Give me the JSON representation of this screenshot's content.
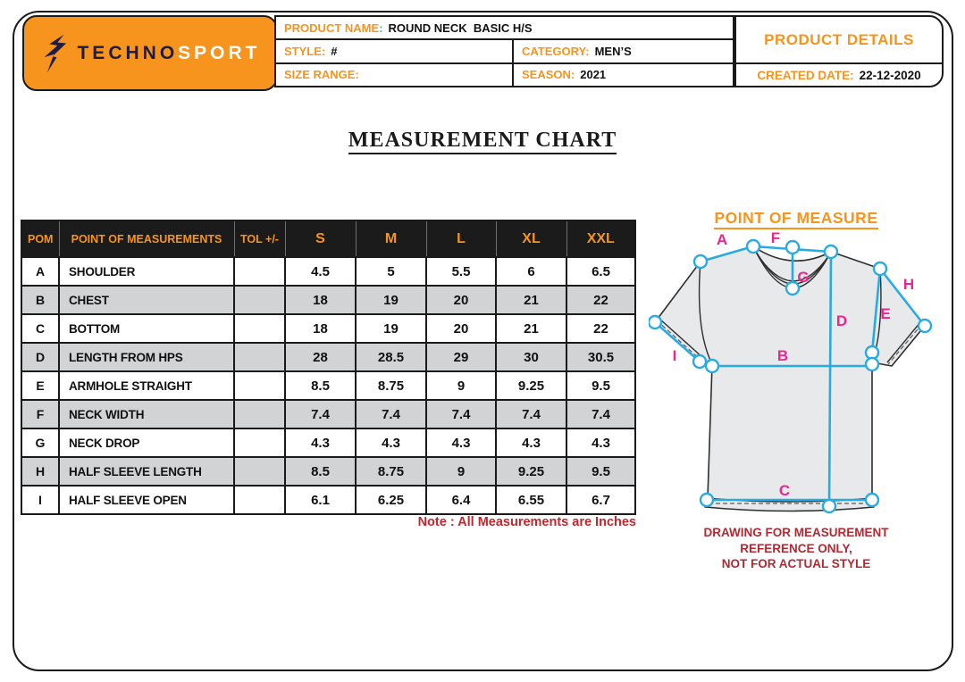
{
  "header": {
    "brand": {
      "name_primary": "TECHNO",
      "name_secondary": "SPORT",
      "icon": "bird-flash-icon"
    },
    "product_name_label": "PRODUCT NAME",
    "product_name_colon": ":",
    "product_name_value": "ROUND NECK  BASIC H/S",
    "style_label": "STYLE:",
    "style_value": "#",
    "category_label": "CATEGORY:",
    "category_value": "MEN’S",
    "size_range_label": "SIZE RANGE:",
    "size_range_value": "",
    "season_label": "SEASON:",
    "season_value": "2021",
    "product_details_title": "PRODUCT DETAILS",
    "created_date_label": "CREATED DATE:",
    "created_date_value": "22-12-2020"
  },
  "sheet_title": "MEASUREMENT CHART",
  "measurement_table": {
    "columns": [
      "POM",
      "POINT OF MEASUREMENTS",
      "TOL +/-",
      "S",
      "M",
      "L",
      "XL",
      "XXL"
    ],
    "rows": [
      {
        "pom": "A",
        "name": "SHOULDER",
        "tol": "",
        "values": [
          "4.5",
          "5",
          "5.5",
          "6",
          "6.5"
        ]
      },
      {
        "pom": "B",
        "name": "CHEST",
        "tol": "",
        "values": [
          "18",
          "19",
          "20",
          "21",
          "22"
        ]
      },
      {
        "pom": "C",
        "name": "BOTTOM",
        "tol": "",
        "values": [
          "18",
          "19",
          "20",
          "21",
          "22"
        ]
      },
      {
        "pom": "D",
        "name": "LENGTH FROM HPS",
        "tol": "",
        "values": [
          "28",
          "28.5",
          "29",
          "30",
          "30.5"
        ]
      },
      {
        "pom": "E",
        "name": "ARMHOLE STRAIGHT",
        "tol": "",
        "values": [
          "8.5",
          "8.75",
          "9",
          "9.25",
          "9.5"
        ]
      },
      {
        "pom": "F",
        "name": "NECK WIDTH",
        "tol": "",
        "values": [
          "7.4",
          "7.4",
          "7.4",
          "7.4",
          "7.4"
        ]
      },
      {
        "pom": "G",
        "name": "NECK DROP",
        "tol": "",
        "values": [
          "4.3",
          "4.3",
          "4.3",
          "4.3",
          "4.3"
        ]
      },
      {
        "pom": "H",
        "name": "HALF SLEEVE LENGTH",
        "tol": "",
        "values": [
          "8.5",
          "8.75",
          "9",
          "9.25",
          "9.5"
        ]
      },
      {
        "pom": "I",
        "name": "HALF SLEEVE OPEN",
        "tol": "",
        "values": [
          "6.1",
          "6.25",
          "6.4",
          "6.55",
          "6.7"
        ]
      }
    ],
    "note": "Note : All Measurements are Inches"
  },
  "point_of_measure": {
    "title": "POINT OF MEASURE",
    "point_labels": [
      "A",
      "F",
      "G",
      "D",
      "B",
      "C",
      "E",
      "H",
      "I"
    ],
    "caption_lines": [
      "DRAWING FOR MEASUREMENT",
      "REFERENCE ONLY,",
      "NOT FOR  ACTUAL STYLE"
    ]
  },
  "colors": {
    "accent_orange": "#F7941D",
    "brand_navy": "#1E1C45",
    "table_header_bg": "#1B1B1B",
    "row_alt_gray": "#D2D3D5",
    "note_red": "#C1272D",
    "caption_red": "#B02A33",
    "measure_line_cyan": "#29ABE2",
    "point_label_pink": "#EC268F",
    "shirt_fill": "#E8E9EA",
    "product_name_colon_blue": "#3FA9F5"
  }
}
